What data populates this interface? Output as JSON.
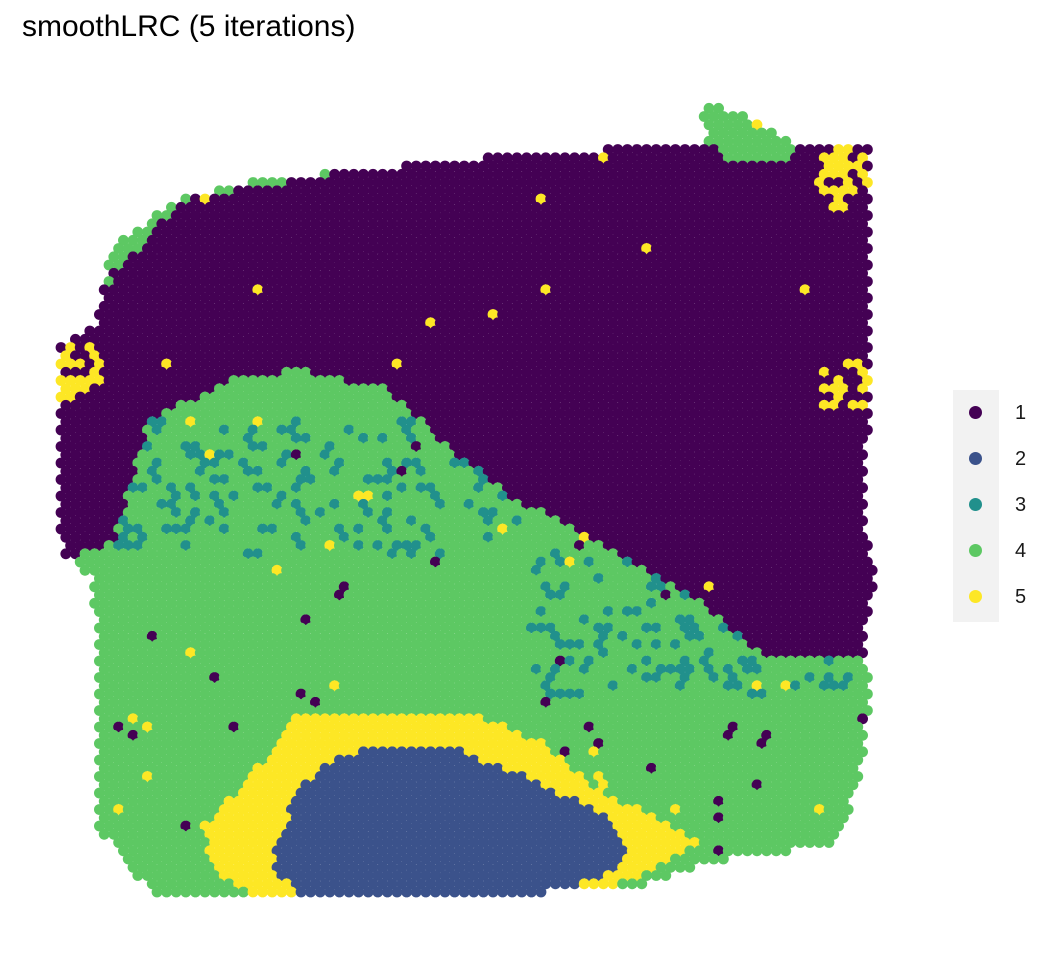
{
  "title": "smoothLRC (5 iterations)",
  "legend": {
    "items": [
      {
        "label": "1",
        "color": "#440154"
      },
      {
        "label": "2",
        "color": "#3b528b"
      },
      {
        "label": "3",
        "color": "#21908c"
      },
      {
        "label": "4",
        "color": "#5dc863"
      },
      {
        "label": "5",
        "color": "#fde725"
      }
    ]
  },
  "chart_data": {
    "type": "scatter",
    "title": "smoothLRC (5 iterations)",
    "xlabel": "",
    "ylabel": "",
    "axes_visible": false,
    "grid": false,
    "legend_position": "right",
    "marker": "filled circle, hexagonal spot grid",
    "clusters": [
      "1",
      "2",
      "3",
      "4",
      "5"
    ],
    "colors": {
      "1": "#440154",
      "2": "#3b528b",
      "3": "#21908c",
      "4": "#5dc863",
      "5": "#fde725"
    }
  }
}
